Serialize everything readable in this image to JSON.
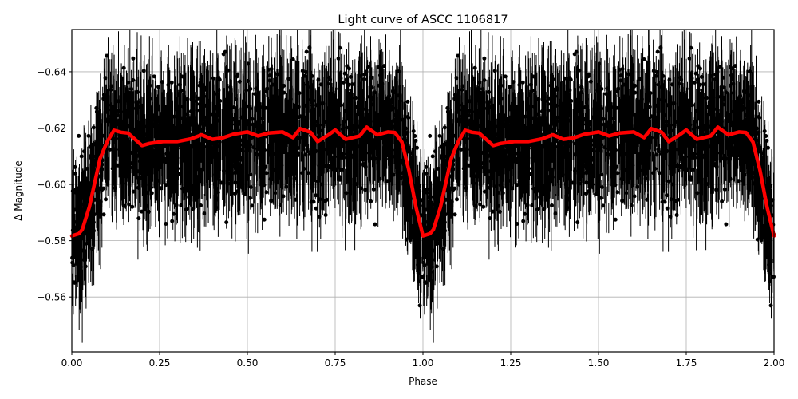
{
  "chart_data": {
    "type": "scatter",
    "title": "Light curve of ASCC 1106817",
    "xlabel": "Phase",
    "ylabel": "Δ Magnitude",
    "xlim": [
      0.0,
      2.0
    ],
    "ylim": [
      -0.5405,
      -0.655
    ],
    "y_inverted": true,
    "grid": true,
    "legend": null,
    "x_ticks": [
      0.0,
      0.25,
      0.5,
      0.75,
      1.0,
      1.25,
      1.5,
      1.75,
      2.0
    ],
    "x_tick_labels": [
      "0.00",
      "0.25",
      "0.50",
      "0.75",
      "1.00",
      "1.25",
      "1.50",
      "1.75",
      "2.00"
    ],
    "y_ticks": [
      -0.64,
      -0.62,
      -0.6,
      -0.58,
      -0.56
    ],
    "y_tick_labels": [
      "−0.64",
      "−0.62",
      "−0.60",
      "−0.58",
      "−0.56"
    ],
    "series": [
      {
        "name": "observations",
        "kind": "errorbar-scatter",
        "color": "#000000",
        "description": "Dense black points with vertical error bars, phase-folded and repeated over 0-2; mean level near -0.615, dips to about -0.58 near phase 0 and 1; scatter spans roughly -0.54 to -0.66"
      },
      {
        "name": "binned mean",
        "kind": "line",
        "color": "#ff0000",
        "linewidth": 4,
        "x": [
          0.0,
          0.02,
          0.03,
          0.05,
          0.08,
          0.1,
          0.12,
          0.14,
          0.16,
          0.2,
          0.22,
          0.26,
          0.3,
          0.34,
          0.37,
          0.4,
          0.43,
          0.46,
          0.5,
          0.53,
          0.56,
          0.6,
          0.63,
          0.65,
          0.68,
          0.7,
          0.73,
          0.75,
          0.78,
          0.82,
          0.84,
          0.87,
          0.9,
          0.92,
          0.94,
          0.96,
          0.98,
          1.0,
          1.02,
          1.03,
          1.05,
          1.08,
          1.1,
          1.12,
          1.14,
          1.16,
          1.2,
          1.22,
          1.26,
          1.3,
          1.34,
          1.37,
          1.4,
          1.43,
          1.46,
          1.5,
          1.53,
          1.56,
          1.6,
          1.63,
          1.65,
          1.68,
          1.7,
          1.73,
          1.75,
          1.78,
          1.82,
          1.84,
          1.87,
          1.9,
          1.92,
          1.94,
          1.96,
          1.98,
          2.0
        ],
        "y": [
          -0.5817,
          -0.5825,
          -0.584,
          -0.592,
          -0.609,
          -0.615,
          -0.6192,
          -0.6185,
          -0.6182,
          -0.6138,
          -0.6145,
          -0.6152,
          -0.6152,
          -0.6162,
          -0.6176,
          -0.616,
          -0.6165,
          -0.6178,
          -0.6186,
          -0.6172,
          -0.6182,
          -0.6186,
          -0.6166,
          -0.6198,
          -0.6185,
          -0.6152,
          -0.6175,
          -0.6193,
          -0.616,
          -0.6172,
          -0.6203,
          -0.6176,
          -0.6186,
          -0.6184,
          -0.615,
          -0.605,
          -0.592,
          -0.5817,
          -0.5825,
          -0.584,
          -0.592,
          -0.609,
          -0.615,
          -0.6192,
          -0.6185,
          -0.6182,
          -0.6138,
          -0.6145,
          -0.6152,
          -0.6152,
          -0.6162,
          -0.6176,
          -0.616,
          -0.6165,
          -0.6178,
          -0.6186,
          -0.6172,
          -0.6182,
          -0.6186,
          -0.6166,
          -0.6198,
          -0.6185,
          -0.6152,
          -0.6175,
          -0.6193,
          -0.616,
          -0.6172,
          -0.6203,
          -0.6176,
          -0.6186,
          -0.6184,
          -0.615,
          -0.605,
          -0.592,
          -0.5817
        ]
      }
    ]
  }
}
